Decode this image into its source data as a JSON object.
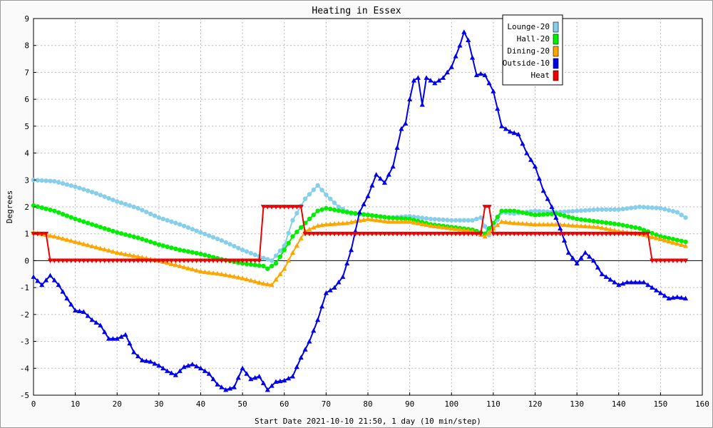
{
  "chart_data": {
    "type": "line",
    "title": "Heating in Essex",
    "xlabel": "Start Date 2021-10-10 21:50, 1 day (10 min/step)",
    "ylabel": "Degrees",
    "xlim": [
      0,
      160
    ],
    "ylim": [
      -5,
      9
    ],
    "xticks": [
      0,
      10,
      20,
      30,
      40,
      50,
      60,
      70,
      80,
      90,
      100,
      110,
      120,
      130,
      140,
      150,
      160
    ],
    "yticks": [
      -5,
      -4,
      -3,
      -2,
      -1,
      0,
      1,
      2,
      3,
      4,
      5,
      6,
      7,
      8,
      9
    ],
    "grid": true,
    "legend_position": "top-right",
    "series": [
      {
        "name": "Lounge-20",
        "color": "#87ceeb",
        "marker": "circle",
        "points": [
          [
            0,
            3.0
          ],
          [
            5,
            2.95
          ],
          [
            10,
            2.75
          ],
          [
            15,
            2.5
          ],
          [
            20,
            2.2
          ],
          [
            25,
            1.95
          ],
          [
            30,
            1.6
          ],
          [
            35,
            1.35
          ],
          [
            40,
            1.05
          ],
          [
            45,
            0.75
          ],
          [
            50,
            0.4
          ],
          [
            55,
            0.1
          ],
          [
            57,
            0.0
          ],
          [
            60,
            0.55
          ],
          [
            62,
            1.5
          ],
          [
            65,
            2.3
          ],
          [
            68,
            2.8
          ],
          [
            70,
            2.45
          ],
          [
            73,
            2.0
          ],
          [
            76,
            1.75
          ],
          [
            80,
            1.7
          ],
          [
            85,
            1.6
          ],
          [
            90,
            1.65
          ],
          [
            95,
            1.55
          ],
          [
            100,
            1.5
          ],
          [
            105,
            1.5
          ],
          [
            107,
            1.6
          ],
          [
            109,
            0.95
          ],
          [
            112,
            1.8
          ],
          [
            115,
            1.75
          ],
          [
            120,
            1.85
          ],
          [
            125,
            1.8
          ],
          [
            130,
            1.85
          ],
          [
            135,
            1.9
          ],
          [
            140,
            1.9
          ],
          [
            145,
            2.0
          ],
          [
            150,
            1.95
          ],
          [
            154,
            1.8
          ],
          [
            156,
            1.6
          ]
        ]
      },
      {
        "name": "Hall-20",
        "color": "#00ee00",
        "marker": "circle",
        "points": [
          [
            0,
            2.05
          ],
          [
            5,
            1.85
          ],
          [
            10,
            1.55
          ],
          [
            15,
            1.3
          ],
          [
            20,
            1.05
          ],
          [
            25,
            0.85
          ],
          [
            30,
            0.6
          ],
          [
            35,
            0.4
          ],
          [
            40,
            0.25
          ],
          [
            45,
            0.05
          ],
          [
            50,
            -0.1
          ],
          [
            55,
            -0.2
          ],
          [
            56,
            -0.3
          ],
          [
            58,
            -0.1
          ],
          [
            60,
            0.4
          ],
          [
            62,
            0.9
          ],
          [
            65,
            1.4
          ],
          [
            68,
            1.85
          ],
          [
            70,
            1.95
          ],
          [
            75,
            1.8
          ],
          [
            80,
            1.7
          ],
          [
            85,
            1.6
          ],
          [
            90,
            1.55
          ],
          [
            95,
            1.35
          ],
          [
            100,
            1.25
          ],
          [
            105,
            1.15
          ],
          [
            108,
            1.0
          ],
          [
            110,
            1.4
          ],
          [
            112,
            1.85
          ],
          [
            115,
            1.85
          ],
          [
            120,
            1.7
          ],
          [
            125,
            1.75
          ],
          [
            130,
            1.55
          ],
          [
            135,
            1.45
          ],
          [
            140,
            1.35
          ],
          [
            145,
            1.2
          ],
          [
            150,
            0.9
          ],
          [
            156,
            0.7
          ]
        ]
      },
      {
        "name": "Dining-20",
        "color": "#ffa500",
        "marker": "triangle",
        "points": [
          [
            0,
            1.05
          ],
          [
            5,
            0.9
          ],
          [
            10,
            0.7
          ],
          [
            15,
            0.5
          ],
          [
            20,
            0.3
          ],
          [
            25,
            0.15
          ],
          [
            30,
            0.0
          ],
          [
            35,
            -0.2
          ],
          [
            40,
            -0.4
          ],
          [
            45,
            -0.5
          ],
          [
            50,
            -0.65
          ],
          [
            55,
            -0.85
          ],
          [
            57,
            -0.9
          ],
          [
            60,
            -0.3
          ],
          [
            62,
            0.3
          ],
          [
            65,
            1.1
          ],
          [
            68,
            1.3
          ],
          [
            70,
            1.35
          ],
          [
            75,
            1.4
          ],
          [
            80,
            1.55
          ],
          [
            85,
            1.45
          ],
          [
            90,
            1.45
          ],
          [
            95,
            1.3
          ],
          [
            100,
            1.2
          ],
          [
            105,
            1.1
          ],
          [
            108,
            0.9
          ],
          [
            110,
            1.2
          ],
          [
            112,
            1.45
          ],
          [
            115,
            1.4
          ],
          [
            120,
            1.35
          ],
          [
            125,
            1.35
          ],
          [
            130,
            1.3
          ],
          [
            135,
            1.25
          ],
          [
            140,
            1.1
          ],
          [
            145,
            1.0
          ],
          [
            150,
            0.8
          ],
          [
            156,
            0.55
          ]
        ]
      },
      {
        "name": "Outside-10",
        "color": "#0000ee",
        "marker": "triangle",
        "points": [
          [
            0,
            -0.6
          ],
          [
            2,
            -0.9
          ],
          [
            4,
            -0.55
          ],
          [
            6,
            -0.9
          ],
          [
            8,
            -1.4
          ],
          [
            10,
            -1.85
          ],
          [
            12,
            -1.9
          ],
          [
            14,
            -2.2
          ],
          [
            16,
            -2.4
          ],
          [
            18,
            -2.9
          ],
          [
            20,
            -2.9
          ],
          [
            22,
            -2.75
          ],
          [
            24,
            -3.4
          ],
          [
            26,
            -3.7
          ],
          [
            28,
            -3.75
          ],
          [
            30,
            -3.9
          ],
          [
            32,
            -4.1
          ],
          [
            34,
            -4.25
          ],
          [
            36,
            -3.95
          ],
          [
            38,
            -3.85
          ],
          [
            40,
            -4.0
          ],
          [
            42,
            -4.2
          ],
          [
            44,
            -4.6
          ],
          [
            46,
            -4.8
          ],
          [
            48,
            -4.7
          ],
          [
            50,
            -4.0
          ],
          [
            52,
            -4.4
          ],
          [
            54,
            -4.3
          ],
          [
            56,
            -4.8
          ],
          [
            58,
            -4.5
          ],
          [
            60,
            -4.45
          ],
          [
            62,
            -4.3
          ],
          [
            64,
            -3.6
          ],
          [
            66,
            -3.0
          ],
          [
            68,
            -2.2
          ],
          [
            70,
            -1.2
          ],
          [
            72,
            -1.0
          ],
          [
            74,
            -0.6
          ],
          [
            76,
            0.4
          ],
          [
            78,
            1.8
          ],
          [
            80,
            2.4
          ],
          [
            82,
            3.2
          ],
          [
            84,
            2.9
          ],
          [
            86,
            3.5
          ],
          [
            88,
            4.9
          ],
          [
            89,
            5.1
          ],
          [
            90,
            6.0
          ],
          [
            91,
            6.7
          ],
          [
            92,
            6.8
          ],
          [
            93,
            5.8
          ],
          [
            94,
            6.8
          ],
          [
            96,
            6.6
          ],
          [
            98,
            6.8
          ],
          [
            100,
            7.2
          ],
          [
            102,
            8.0
          ],
          [
            103,
            8.5
          ],
          [
            104,
            8.2
          ],
          [
            106,
            6.9
          ],
          [
            107,
            6.95
          ],
          [
            108,
            6.9
          ],
          [
            110,
            6.3
          ],
          [
            112,
            5.0
          ],
          [
            114,
            4.8
          ],
          [
            116,
            4.7
          ],
          [
            118,
            4.0
          ],
          [
            120,
            3.5
          ],
          [
            122,
            2.6
          ],
          [
            124,
            2.0
          ],
          [
            126,
            1.2
          ],
          [
            128,
            0.3
          ],
          [
            130,
            -0.1
          ],
          [
            132,
            0.3
          ],
          [
            134,
            0.0
          ],
          [
            136,
            -0.5
          ],
          [
            138,
            -0.7
          ],
          [
            140,
            -0.9
          ],
          [
            142,
            -0.8
          ],
          [
            146,
            -0.8
          ],
          [
            148,
            -1.0
          ],
          [
            150,
            -1.2
          ],
          [
            152,
            -1.4
          ],
          [
            154,
            -1.35
          ],
          [
            156,
            -1.4
          ]
        ]
      },
      {
        "name": "Heat",
        "color": "#ee0000",
        "marker": "triangle-down",
        "points": [
          [
            0,
            1.0
          ],
          [
            3,
            1.0
          ],
          [
            4,
            0.0
          ],
          [
            54,
            0.0
          ],
          [
            55,
            2.0
          ],
          [
            64,
            2.0
          ],
          [
            65,
            1.0
          ],
          [
            107,
            1.0
          ],
          [
            108,
            2.0
          ],
          [
            109,
            2.0
          ],
          [
            110,
            1.0
          ],
          [
            147,
            1.0
          ],
          [
            148,
            0.0
          ],
          [
            156,
            0.0
          ]
        ]
      }
    ]
  }
}
